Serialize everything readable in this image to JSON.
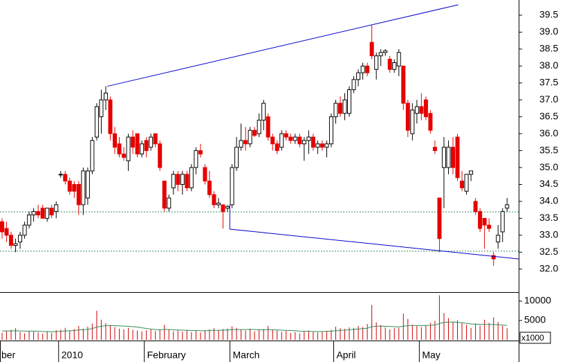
{
  "chart_data": [
    {
      "type": "candlestick",
      "categories": [
        "ber",
        null,
        null,
        null,
        null,
        null,
        null,
        null,
        null,
        null,
        null,
        null,
        null,
        "2010",
        null,
        null,
        null,
        null,
        null,
        null,
        null,
        null,
        null,
        null,
        null,
        null,
        null,
        null,
        null,
        null,
        null,
        null,
        "February",
        null,
        null,
        null,
        null,
        null,
        null,
        null,
        null,
        null,
        null,
        null,
        null,
        null,
        null,
        null,
        null,
        null,
        null,
        "March",
        null,
        null,
        null,
        null,
        null,
        null,
        null,
        null,
        null,
        null,
        null,
        null,
        null,
        null,
        null,
        null,
        null,
        null,
        null,
        null,
        null,
        null,
        "April",
        null,
        null,
        null,
        null,
        null,
        null,
        null,
        null,
        null,
        null,
        null,
        null,
        null,
        null,
        null,
        null,
        null,
        null,
        "May",
        null,
        null,
        null,
        null,
        null,
        null,
        null,
        null,
        null,
        null,
        null,
        null,
        null,
        null,
        null,
        null,
        null,
        null,
        null
      ],
      "open": [
        33.4,
        33.2,
        33.0,
        32.7,
        32.8,
        33.0,
        33.3,
        33.6,
        33.7,
        33.8,
        33.5,
        33.8,
        33.7,
        34.8,
        34.8,
        34.6,
        34.5,
        34.5,
        33.9,
        34.1,
        34.9,
        35.9,
        36.5,
        37.0,
        37.0,
        36.0,
        35.7,
        35.4,
        35.2,
        35.9,
        36.0,
        35.4,
        35.8,
        35.6,
        36.0,
        35.7,
        34.6,
        33.8,
        34.4,
        34.8,
        34.5,
        34.8,
        34.4,
        35.0,
        35.5,
        35.0,
        34.6,
        34.2,
        33.9,
        33.9,
        33.8,
        33.9,
        35.0,
        35.6,
        35.8,
        35.7,
        36.1,
        36.0,
        36.4,
        36.5,
        35.9,
        35.7,
        35.6,
        36.0,
        35.9,
        35.8,
        35.9,
        35.7,
        35.8,
        35.9,
        35.6,
        35.7,
        35.6,
        35.7,
        36.5,
        36.9,
        36.6,
        36.6,
        37.3,
        37.6,
        37.8,
        38.0,
        38.7,
        37.9,
        38.3,
        38.4,
        38.2,
        37.9,
        38.0,
        38.0,
        36.9,
        36.0,
        36.6,
        36.8,
        37.0,
        36.6,
        35.6,
        34.1,
        35.0,
        35.0,
        35.6,
        35.9,
        34.6,
        34.3,
        34.8,
        34.0,
        33.7,
        33.5,
        33.3,
        32.4,
        32.8,
        33.1,
        33.8
      ],
      "high": [
        33.5,
        33.4,
        33.1,
        32.9,
        33.1,
        33.4,
        33.7,
        33.8,
        33.9,
        33.9,
        33.8,
        33.9,
        34.0,
        34.9,
        34.9,
        34.7,
        34.6,
        34.6,
        35.0,
        35.0,
        35.9,
        36.9,
        37.3,
        37.4,
        37.1,
        36.2,
        35.9,
        35.6,
        36.0,
        36.1,
        36.0,
        35.8,
        35.9,
        36.0,
        36.0,
        35.8,
        34.6,
        34.2,
        34.9,
        34.9,
        34.9,
        34.9,
        35.1,
        35.6,
        35.7,
        35.1,
        34.9,
        34.3,
        34.1,
        33.9,
        33.9,
        35.1,
        35.9,
        36.3,
        36.2,
        36.2,
        36.2,
        36.6,
        37.0,
        36.6,
        36.0,
        35.8,
        36.1,
        36.1,
        36.0,
        36.0,
        36.0,
        35.9,
        36.1,
        36.0,
        35.8,
        35.8,
        35.8,
        36.6,
        37.0,
        37.1,
        37.2,
        37.4,
        37.7,
        37.9,
        38.1,
        38.1,
        39.2,
        38.4,
        38.5,
        38.5,
        38.3,
        38.2,
        38.5,
        38.0,
        37.0,
        36.9,
        37.0,
        37.2,
        37.1,
        36.7,
        35.8,
        34.1,
        35.9,
        35.8,
        35.9,
        36.0,
        34.9,
        34.8,
        34.9,
        34.1,
        33.8,
        33.5,
        33.5,
        32.5,
        33.3,
        33.8,
        34.1
      ],
      "low": [
        32.9,
        32.8,
        32.6,
        32.5,
        32.6,
        32.9,
        33.2,
        33.4,
        33.5,
        33.5,
        33.4,
        33.5,
        33.5,
        34.7,
        34.5,
        34.2,
        34.1,
        33.6,
        33.6,
        33.9,
        34.8,
        35.8,
        36.0,
        36.7,
        35.8,
        35.4,
        35.3,
        35.2,
        34.9,
        35.4,
        35.3,
        35.3,
        35.3,
        35.5,
        35.6,
        34.9,
        33.7,
        33.7,
        34.2,
        34.3,
        34.2,
        34.3,
        34.3,
        34.8,
        35.3,
        34.5,
        34.1,
        33.8,
        33.8,
        33.2,
        33.7,
        33.8,
        34.9,
        35.5,
        35.5,
        35.6,
        35.9,
        35.9,
        36.1,
        35.8,
        35.5,
        35.4,
        35.5,
        35.8,
        35.7,
        35.7,
        35.6,
        35.2,
        35.4,
        35.5,
        35.4,
        35.5,
        35.3,
        35.6,
        36.3,
        36.5,
        36.4,
        36.5,
        37.2,
        37.4,
        37.6,
        37.7,
        38.2,
        37.6,
        38.0,
        38.3,
        37.8,
        37.8,
        37.7,
        36.7,
        35.9,
        35.8,
        36.3,
        36.4,
        36.4,
        36.0,
        35.4,
        32.5,
        33.8,
        34.8,
        34.8,
        34.6,
        34.3,
        34.2,
        34.6,
        33.6,
        33.1,
        32.6,
        33.1,
        32.1,
        32.6,
        32.8,
        33.7
      ],
      "close": [
        33.1,
        33.0,
        32.7,
        32.75,
        33.0,
        33.3,
        33.6,
        33.7,
        33.6,
        33.5,
        33.8,
        33.6,
        33.9,
        34.8,
        34.6,
        34.3,
        34.3,
        33.9,
        34.9,
        34.9,
        35.8,
        36.8,
        37.0,
        37.2,
        36.0,
        35.6,
        35.4,
        35.3,
        35.9,
        35.6,
        35.4,
        35.7,
        35.5,
        35.9,
        35.7,
        35.0,
        33.8,
        34.1,
        34.8,
        34.5,
        34.8,
        34.4,
        35.0,
        35.5,
        35.4,
        34.6,
        34.2,
        33.9,
        33.95,
        33.7,
        33.85,
        35.0,
        35.6,
        35.8,
        35.7,
        36.1,
        35.95,
        36.4,
        36.9,
        35.9,
        35.7,
        35.5,
        36.0,
        35.9,
        35.8,
        35.9,
        35.7,
        35.8,
        35.9,
        35.6,
        35.7,
        35.6,
        35.7,
        36.5,
        36.9,
        36.6,
        37.0,
        37.3,
        37.6,
        37.8,
        38.0,
        37.8,
        38.3,
        38.3,
        38.4,
        38.45,
        37.9,
        38.1,
        38.4,
        36.9,
        36.1,
        36.7,
        36.8,
        36.6,
        36.5,
        36.1,
        35.5,
        32.9,
        35.6,
        35.6,
        35.0,
        34.7,
        34.4,
        34.8,
        34.9,
        33.7,
        33.2,
        33.3,
        33.2,
        32.3,
        33.0,
        33.7,
        33.9
      ],
      "up_color": "#ffffff",
      "down_color": "#e60000",
      "wick_color": "#000000",
      "ylim": [
        31.32,
        39.95
      ],
      "yticks": [
        {
          "value": 32,
          "label": "32.0"
        },
        32.5,
        {
          "value": 33,
          "label": "33.0"
        },
        33.5,
        {
          "value": 34,
          "label": "34.0"
        },
        34.5,
        {
          "value": 35,
          "label": "35.0"
        },
        35.5,
        {
          "value": 36,
          "label": "36.0"
        },
        36.5,
        {
          "value": 37,
          "label": "37.0"
        },
        37.5,
        {
          "value": 38,
          "label": "38.0"
        },
        38.5,
        {
          "value": 39,
          "label": "39.0"
        },
        39.5
      ],
      "trendlines": [
        {
          "color": "#0000cc",
          "x": [
            23.3,
            101.2
          ],
          "y": [
            37.4,
            39.81
          ]
        },
        {
          "color": "#0000cc",
          "x": [
            50.5,
            50.5,
            114.6
          ],
          "y": [
            33.9,
            33.18,
            32.3
          ]
        }
      ],
      "hlines": {
        "color": "#2e8b57",
        "values": [
          33.69,
          32.53
        ]
      },
      "grid": false
    },
    {
      "type": "bar",
      "series": [
        {
          "color": "#cc0000",
          "values": [
            1800,
            2200,
            2600,
            3000,
            2000,
            1700,
            2300,
            2100,
            1900,
            1600,
            2200,
            1800,
            2500,
            2600,
            3100,
            2400,
            2800,
            3600,
            2900,
            3400,
            4200,
            7500,
            5200,
            4300,
            3800,
            3300,
            2900,
            2700,
            3100,
            2600,
            2400,
            2200,
            2500,
            2800,
            2300,
            2600,
            3900,
            2700,
            2200,
            2400,
            2100,
            2600,
            2000,
            2300,
            1900,
            2500,
            2700,
            3000,
            2400,
            2800,
            2900,
            3500,
            3100,
            2600,
            2400,
            2900,
            2200,
            2500,
            2800,
            3600,
            2700,
            2400,
            2100,
            2300,
            1800,
            2000,
            1700,
            2200,
            2400,
            2000,
            1900,
            2100,
            2300,
            2600,
            3400,
            3000,
            2800,
            3200,
            3100,
            3600,
            3300,
            4100,
            9000,
            4500,
            3800,
            3200,
            2700,
            3000,
            3100,
            6800,
            5400,
            3900,
            3600,
            3300,
            3800,
            4400,
            4900,
            11500,
            6900,
            5600,
            4700,
            5100,
            4300,
            3900,
            3100,
            4200,
            3700,
            5200,
            4400,
            5800,
            4600,
            3600,
            3000
          ]
        },
        {
          "type": "line",
          "color": "#2e8b57",
          "values": [
            2300,
            2300,
            2300,
            2350,
            2300,
            2250,
            2250,
            2250,
            2200,
            2150,
            2150,
            2100,
            2150,
            2200,
            2300,
            2350,
            2400,
            2550,
            2600,
            2700,
            2900,
            3300,
            3500,
            3650,
            3700,
            3650,
            3600,
            3550,
            3500,
            3400,
            3300,
            3100,
            2950,
            2800,
            2650,
            2600,
            2700,
            2650,
            2600,
            2550,
            2500,
            2450,
            2400,
            2400,
            2350,
            2350,
            2400,
            2450,
            2450,
            2500,
            2550,
            2600,
            2650,
            2650,
            2650,
            2700,
            2650,
            2600,
            2600,
            2650,
            2600,
            2550,
            2500,
            2450,
            2400,
            2350,
            2250,
            2200,
            2200,
            2150,
            2150,
            2150,
            2200,
            2250,
            2350,
            2450,
            2500,
            2600,
            2700,
            2800,
            2900,
            3000,
            3400,
            3500,
            3550,
            3500,
            3450,
            3400,
            3350,
            3500,
            3650,
            3700,
            3700,
            3650,
            3700,
            3750,
            3850,
            4200,
            4500,
            4600,
            4600,
            4500,
            4400,
            4250,
            4100,
            4050,
            4000,
            4000,
            3950,
            3950,
            3900,
            3800,
            3700
          ]
        }
      ],
      "ylim": [
        0,
        12140
      ],
      "yticks": [
        5000,
        10000
      ],
      "unit_label": "x1000"
    }
  ]
}
